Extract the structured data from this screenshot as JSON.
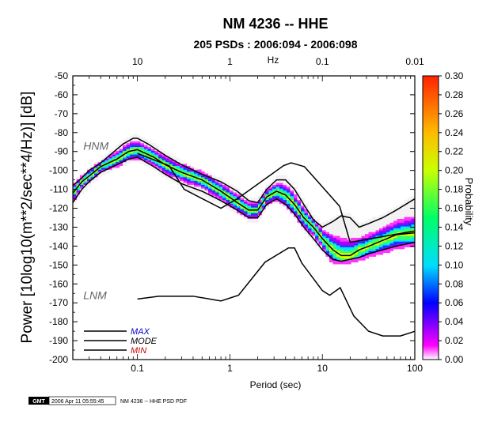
{
  "chart_data": {
    "type": "heatmap",
    "title": "NM 4236 -- HHE",
    "subtitle": "205 PSDs : 2006:094 - 2006:098",
    "xlabel": "Period (sec)",
    "ylabel": "Power [10log10(m**2/sec**4/Hz)] [dB]",
    "top_axis_label": "Hz",
    "colorbar_label": "Probability",
    "xscale": "log",
    "xlim": [
      0.02,
      100
    ],
    "ylim": [
      -200,
      -50
    ],
    "x_ticks": [
      "0.1",
      "1",
      "10",
      "100"
    ],
    "top_ticks": [
      "10",
      "1",
      "0.1",
      "0.01"
    ],
    "y_ticks": [
      "-50",
      "-60",
      "-70",
      "-80",
      "-90",
      "-100",
      "-110",
      "-120",
      "-130",
      "-140",
      "-150",
      "-160",
      "-170",
      "-180",
      "-190",
      "-200"
    ],
    "colorbar_ticks": [
      "0.30",
      "0.28",
      "0.26",
      "0.24",
      "0.22",
      "0.20",
      "0.18",
      "0.16",
      "0.14",
      "0.12",
      "0.10",
      "0.08",
      "0.06",
      "0.04",
      "0.02",
      "0.00"
    ],
    "colorbar_range": [
      0,
      0.3
    ],
    "annotations": [
      {
        "text": "HNM",
        "x": 0.027,
        "y": -87
      },
      {
        "text": "LNM",
        "x": 0.027,
        "y": -166
      }
    ],
    "legend": {
      "placement": "bottom-left",
      "entries": [
        {
          "label": "MAX",
          "color": "#0000cc"
        },
        {
          "label": "MODE",
          "color": "#000000"
        },
        {
          "label": "MIN",
          "color": "#cc0000"
        }
      ]
    },
    "series": [
      {
        "name": "HNM",
        "x": [
          0.1,
          0.22,
          0.32,
          0.8,
          1.2,
          3.8,
          4.6,
          6.4,
          7.9,
          15.4,
          20,
          100
        ],
        "y": [
          -91,
          -97.5,
          -110,
          -120,
          -115,
          -97.5,
          -96,
          -98,
          -103,
          -119,
          -138,
          -132
        ]
      },
      {
        "name": "LNM",
        "x": [
          0.1,
          0.17,
          0.4,
          0.8,
          1.24,
          2.4,
          4.3,
          5,
          6,
          10,
          12,
          15.6,
          21.9,
          31.6,
          45,
          70,
          101
        ],
        "y": [
          -168,
          -166.5,
          -166.5,
          -169,
          -166,
          -148.5,
          -141,
          -141,
          -149,
          -163.5,
          -166,
          -162,
          -177,
          -185,
          -187.5,
          -187.5,
          -185
        ]
      },
      {
        "name": "MODE",
        "x": [
          0.02,
          0.025,
          0.03,
          0.04,
          0.06,
          0.08,
          0.1,
          0.15,
          0.2,
          0.3,
          0.5,
          0.8,
          1.2,
          1.6,
          2.0,
          2.5,
          3.2,
          4,
          5,
          6.3,
          8,
          10,
          13,
          16,
          20,
          25,
          32,
          45,
          63,
          100
        ],
        "y": [
          -112,
          -106,
          -103,
          -98,
          -94,
          -90,
          -89,
          -93,
          -97,
          -101,
          -105,
          -111,
          -117,
          -121,
          -121,
          -114,
          -111,
          -113,
          -118,
          -125,
          -130,
          -136,
          -142,
          -145,
          -145,
          -142,
          -140,
          -137,
          -134,
          -133
        ]
      },
      {
        "name": "MAX",
        "x": [
          0.02,
          0.025,
          0.03,
          0.04,
          0.05,
          0.07,
          0.09,
          0.1,
          0.13,
          0.2,
          0.3,
          0.5,
          0.8,
          1.2,
          1.6,
          2.0,
          2.5,
          3.2,
          4,
          5,
          6.3,
          8,
          10,
          13,
          16,
          20,
          25,
          32,
          45,
          63,
          100
        ],
        "y": [
          -108,
          -104,
          -100,
          -96,
          -92,
          -86,
          -83,
          -83,
          -86,
          -92,
          -97,
          -102,
          -106,
          -111,
          -116,
          -117,
          -110,
          -105,
          -105,
          -110,
          -118,
          -126,
          -130,
          -127,
          -124,
          -125,
          -130,
          -128,
          -125,
          -121,
          -115
        ]
      },
      {
        "name": "MIN",
        "x": [
          0.02,
          0.025,
          0.03,
          0.04,
          0.06,
          0.08,
          0.1,
          0.15,
          0.2,
          0.3,
          0.5,
          0.8,
          1.2,
          1.6,
          2.0,
          2.5,
          3.2,
          4,
          5,
          6.3,
          8,
          10,
          13,
          16,
          20,
          25,
          32,
          45,
          63,
          100
        ],
        "y": [
          -117,
          -110,
          -106,
          -101,
          -97,
          -94,
          -93,
          -98,
          -102,
          -107,
          -111,
          -116,
          -121,
          -125,
          -125,
          -118,
          -115,
          -118,
          -123,
          -130,
          -136,
          -142,
          -147,
          -148,
          -147,
          -146,
          -144,
          -142,
          -140,
          -138
        ]
      }
    ]
  },
  "footer": {
    "logo_text": "GMT",
    "timestamp": "2006 Apr 11 05:55:45",
    "caption": "NM 4236 -- HHE PSD PDF"
  }
}
